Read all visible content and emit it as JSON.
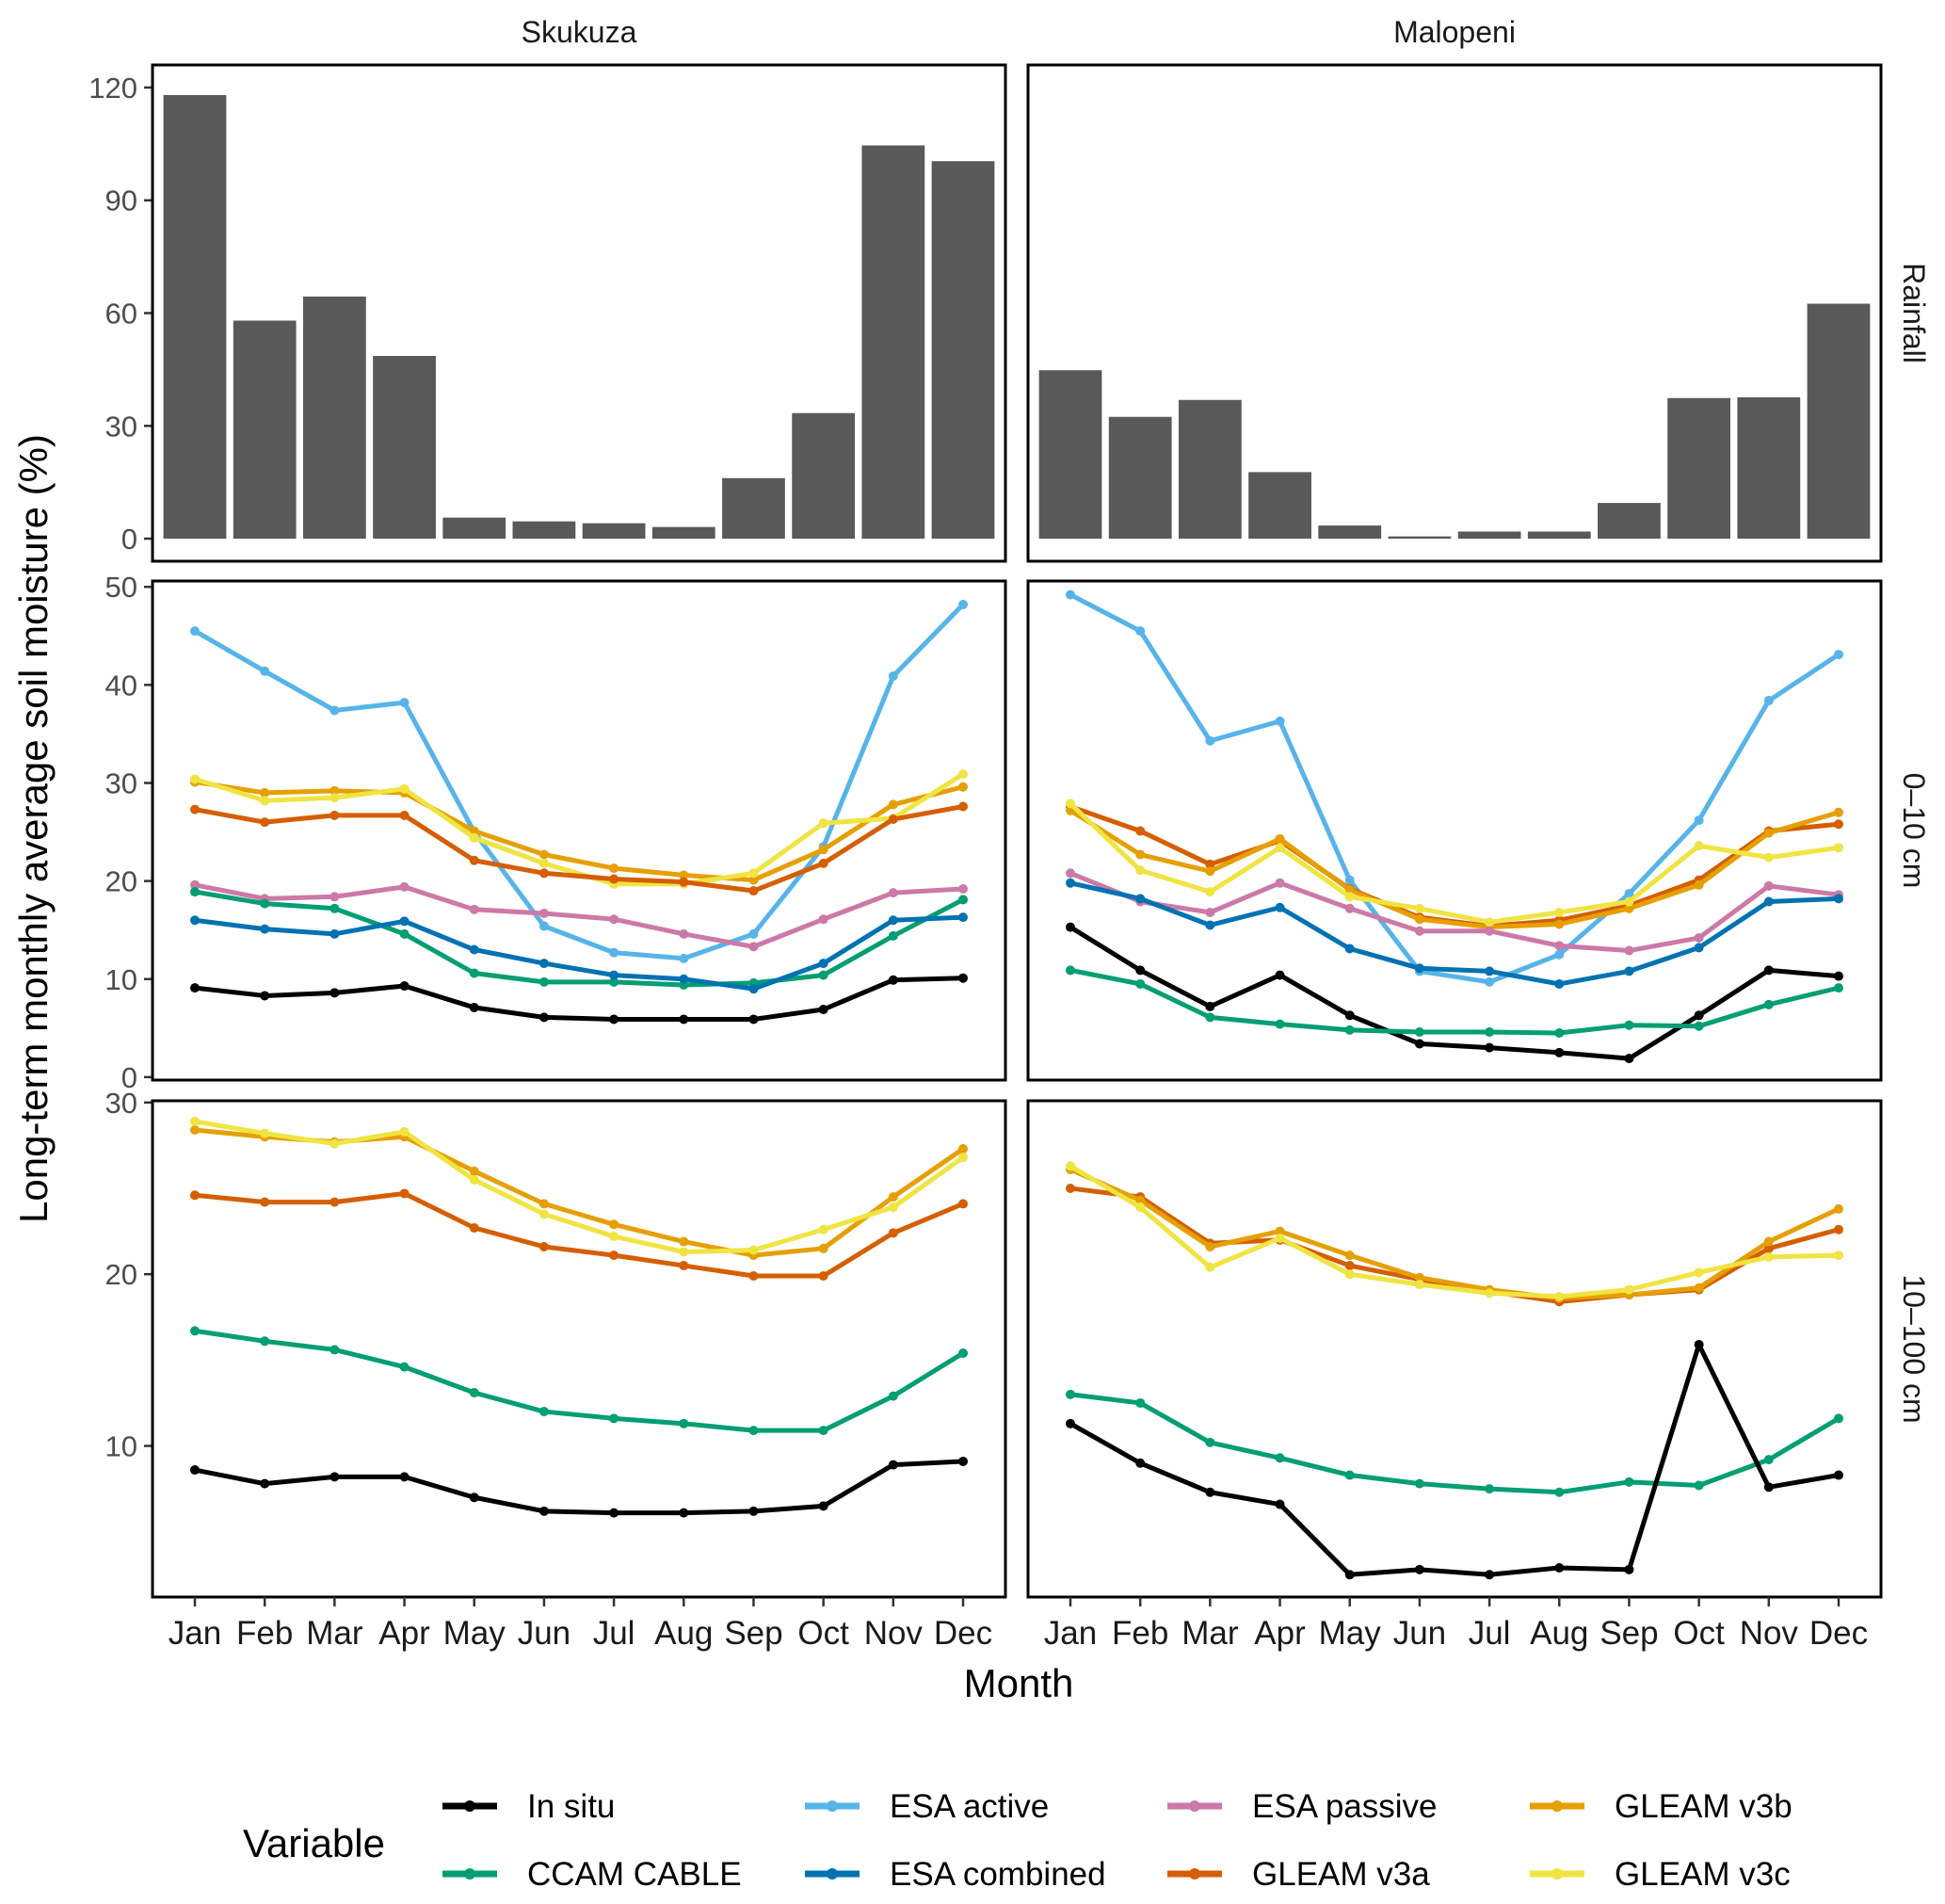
{
  "chart_data": {
    "type": "line",
    "title": "",
    "xlabel": "Month",
    "ylabel": "Long-term monthly average soil moisture (%)",
    "categories": [
      "Jan",
      "Feb",
      "Mar",
      "Apr",
      "May",
      "Jun",
      "Jul",
      "Aug",
      "Sep",
      "Oct",
      "Nov",
      "Dec"
    ],
    "facet_columns": [
      "Skukuza",
      "Malopeni"
    ],
    "facet_rows": [
      "Rainfall",
      "0–10 cm",
      "10–100 cm"
    ],
    "legend": {
      "title": "Variable",
      "position": "bottom",
      "entries": [
        {
          "name": "In situ",
          "color": "#000000"
        },
        {
          "name": "CCAM CABLE",
          "color": "#009E73"
        },
        {
          "name": "ESA active",
          "color": "#56B4E9"
        },
        {
          "name": "ESA combined",
          "color": "#0072B2"
        },
        {
          "name": "ESA passive",
          "color": "#CC79A7"
        },
        {
          "name": "GLEAM v3a",
          "color": "#D55E00"
        },
        {
          "name": "GLEAM v3b",
          "color": "#E69F00"
        },
        {
          "name": "GLEAM v3c",
          "color": "#F0E442"
        }
      ]
    },
    "rows": [
      {
        "row": "Rainfall",
        "type": "bar",
        "bar_color": "#595959",
        "ylim": [
          0,
          120
        ],
        "yticks": [
          0,
          30,
          60,
          90,
          120
        ],
        "panels": {
          "Skukuza": [
            118.0,
            58.0,
            64.4,
            48.6,
            5.6,
            4.6,
            4.1,
            3.1,
            16.1,
            33.4,
            104.6,
            100.4
          ],
          "Malopeni": [
            44.8,
            32.4,
            36.9,
            17.7,
            3.5,
            0.6,
            1.9,
            1.9,
            9.5,
            37.4,
            37.6,
            62.5
          ]
        }
      },
      {
        "row": "0–10 cm",
        "type": "line",
        "ylim": [
          0,
          50
        ],
        "yticks": [
          0,
          10,
          20,
          30,
          40,
          50
        ],
        "panels": {
          "Skukuza": [
            {
              "name": "ESA active",
              "values": [
                45.5,
                41.4,
                37.4,
                38.2,
                25.0,
                15.4,
                12.7,
                12.1,
                14.6,
                23.5,
                40.9,
                48.2
              ]
            },
            {
              "name": "GLEAM v3b",
              "values": [
                30.1,
                29.0,
                29.2,
                29.0,
                25.1,
                22.7,
                21.3,
                20.6,
                20.1,
                23.2,
                27.8,
                29.6
              ]
            },
            {
              "name": "GLEAM v3c",
              "values": [
                30.4,
                28.2,
                28.5,
                29.4,
                24.4,
                21.8,
                19.7,
                19.7,
                20.8,
                25.9,
                26.4,
                30.9
              ]
            },
            {
              "name": "GLEAM v3a",
              "values": [
                27.3,
                26.0,
                26.7,
                26.7,
                22.1,
                20.8,
                20.2,
                19.9,
                19.0,
                21.8,
                26.3,
                27.6
              ]
            },
            {
              "name": "ESA passive",
              "values": [
                19.6,
                18.2,
                18.4,
                19.4,
                17.1,
                16.7,
                16.1,
                14.6,
                13.3,
                16.1,
                18.8,
                19.2
              ]
            },
            {
              "name": "CCAM CABLE",
              "values": [
                18.9,
                17.7,
                17.2,
                14.6,
                10.6,
                9.7,
                9.7,
                9.4,
                9.6,
                10.4,
                14.4,
                18.1
              ]
            },
            {
              "name": "ESA combined",
              "values": [
                16.0,
                15.1,
                14.6,
                15.9,
                13.0,
                11.6,
                10.4,
                10.0,
                9.0,
                11.6,
                16.0,
                16.3
              ]
            },
            {
              "name": "In situ",
              "values": [
                9.1,
                8.3,
                8.6,
                9.3,
                7.1,
                6.1,
                5.9,
                5.9,
                5.9,
                6.9,
                9.9,
                10.1
              ]
            }
          ],
          "Malopeni": [
            {
              "name": "ESA active",
              "values": [
                49.2,
                45.5,
                34.3,
                36.3,
                20.1,
                10.8,
                9.7,
                12.5,
                18.7,
                26.2,
                38.4,
                43.1
              ]
            },
            {
              "name": "GLEAM v3a",
              "values": [
                27.6,
                25.1,
                21.7,
                24.1,
                19.2,
                16.3,
                15.4,
                16.0,
                17.5,
                20.1,
                25.1,
                25.8
              ]
            },
            {
              "name": "GLEAM v3b",
              "values": [
                27.2,
                22.7,
                21.0,
                24.3,
                19.1,
                16.1,
                15.3,
                15.6,
                17.2,
                19.6,
                24.9,
                27.0
              ]
            },
            {
              "name": "GLEAM v3c",
              "values": [
                27.9,
                21.1,
                18.9,
                23.4,
                18.4,
                17.2,
                15.8,
                16.8,
                17.9,
                23.6,
                22.4,
                23.4
              ]
            },
            {
              "name": "ESA passive",
              "values": [
                20.8,
                17.9,
                16.8,
                19.8,
                17.2,
                14.9,
                14.9,
                13.4,
                12.9,
                14.2,
                19.5,
                18.6
              ]
            },
            {
              "name": "ESA combined",
              "values": [
                19.8,
                18.2,
                15.5,
                17.3,
                13.1,
                11.1,
                10.8,
                9.5,
                10.8,
                13.2,
                17.9,
                18.2
              ]
            },
            {
              "name": "In situ",
              "values": [
                15.3,
                10.9,
                7.2,
                10.4,
                6.3,
                3.4,
                3.0,
                2.5,
                1.9,
                6.3,
                10.9,
                10.3
              ]
            },
            {
              "name": "CCAM CABLE",
              "values": [
                10.9,
                9.5,
                6.1,
                5.4,
                4.8,
                4.6,
                4.6,
                4.5,
                5.3,
                5.2,
                7.4,
                9.1
              ]
            }
          ]
        }
      },
      {
        "row": "10–100 cm",
        "type": "line",
        "ylim": [
          1.2,
          30.1
        ],
        "yticks": [
          10,
          20,
          30
        ],
        "panels": {
          "Skukuza": [
            {
              "name": "GLEAM v3b",
              "values": [
                28.4,
                28.0,
                27.7,
                28.0,
                26.0,
                24.1,
                22.9,
                21.9,
                21.1,
                21.5,
                24.5,
                27.3
              ]
            },
            {
              "name": "GLEAM v3c",
              "values": [
                28.9,
                28.2,
                27.6,
                28.3,
                25.5,
                23.5,
                22.2,
                21.3,
                21.4,
                22.6,
                23.9,
                26.8
              ]
            },
            {
              "name": "GLEAM v3a",
              "values": [
                24.6,
                24.2,
                24.2,
                24.7,
                22.7,
                21.6,
                21.1,
                20.5,
                19.9,
                19.9,
                22.4,
                24.1
              ]
            },
            {
              "name": "CCAM CABLE",
              "values": [
                16.7,
                16.1,
                15.6,
                14.6,
                13.1,
                12.0,
                11.6,
                11.3,
                10.9,
                10.9,
                12.9,
                15.4
              ]
            },
            {
              "name": "In situ",
              "values": [
                8.6,
                7.8,
                8.2,
                8.2,
                7.0,
                6.2,
                6.1,
                6.1,
                6.2,
                6.5,
                8.9,
                9.1
              ]
            }
          ],
          "Malopeni": [
            {
              "name": "GLEAM v3a",
              "values": [
                25.0,
                24.5,
                21.8,
                22.0,
                20.5,
                19.7,
                19.0,
                18.4,
                18.8,
                19.1,
                21.5,
                22.6
              ]
            },
            {
              "name": "GLEAM v3b",
              "values": [
                26.1,
                24.3,
                21.6,
                22.5,
                21.1,
                19.8,
                19.1,
                18.6,
                18.8,
                19.2,
                21.9,
                23.8
              ]
            },
            {
              "name": "GLEAM v3c",
              "values": [
                26.3,
                23.9,
                20.4,
                22.1,
                20.0,
                19.4,
                18.9,
                18.7,
                19.1,
                20.1,
                21.0,
                21.1
              ]
            },
            {
              "name": "CCAM CABLE",
              "values": [
                13.0,
                12.5,
                10.2,
                9.3,
                8.3,
                7.8,
                7.5,
                7.3,
                7.9,
                7.7,
                9.2,
                11.6
              ]
            },
            {
              "name": "In situ",
              "values": [
                11.3,
                9.0,
                7.3,
                6.6,
                2.5,
                2.8,
                2.5,
                2.9,
                2.8,
                15.9,
                7.6,
                8.3
              ]
            }
          ]
        }
      }
    ]
  }
}
